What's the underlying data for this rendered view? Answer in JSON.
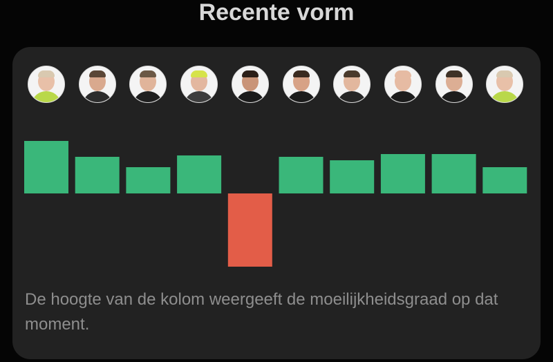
{
  "page": {
    "title": "Recente vorm",
    "caption": "De hoogte van de kolom weergeeft de moeilijkheidsgraad op dat moment."
  },
  "colors": {
    "positive": "#3ab77a",
    "negative": "#e35d48",
    "card": "#222222",
    "background": "#050505"
  },
  "players": [
    {
      "avatar": "player-avatar-1",
      "shirt": "#b9d84a",
      "skin": "#e8c0a8",
      "hair": "#d9c9b0"
    },
    {
      "avatar": "player-avatar-2",
      "shirt": "#2c2c2c",
      "skin": "#d9a98e",
      "hair": "#5a4636"
    },
    {
      "avatar": "player-avatar-3",
      "shirt": "#1f1f1f",
      "skin": "#e0b49a",
      "hair": "#6b5845"
    },
    {
      "avatar": "player-avatar-4",
      "shirt": "#3d3d3d",
      "skin": "#e3b79f",
      "hair": "#d6e34a"
    },
    {
      "avatar": "player-avatar-5",
      "shirt": "#1b1b1b",
      "skin": "#c99478",
      "hair": "#2b1f18"
    },
    {
      "avatar": "player-avatar-6",
      "shirt": "#1b1b1b",
      "skin": "#d7a286",
      "hair": "#3a2a1f"
    },
    {
      "avatar": "player-avatar-7",
      "shirt": "#262626",
      "skin": "#e2b79e",
      "hair": "#4a3a2c"
    },
    {
      "avatar": "player-avatar-8",
      "shirt": "#1c1c1c",
      "skin": "#e6bba3",
      "hair": "#e6bba3"
    },
    {
      "avatar": "player-avatar-9",
      "shirt": "#1d1d1d",
      "skin": "#dcae94",
      "hair": "#3f3226"
    },
    {
      "avatar": "player-avatar-10",
      "shirt": "#b9d84a",
      "skin": "#e8c0a8",
      "hair": "#d9c9b0"
    }
  ],
  "chart_data": {
    "type": "bar",
    "values": [
      76,
      53,
      38,
      55,
      -106,
      53,
      48,
      57,
      57,
      38
    ],
    "ylim": [
      -106,
      76
    ]
  }
}
